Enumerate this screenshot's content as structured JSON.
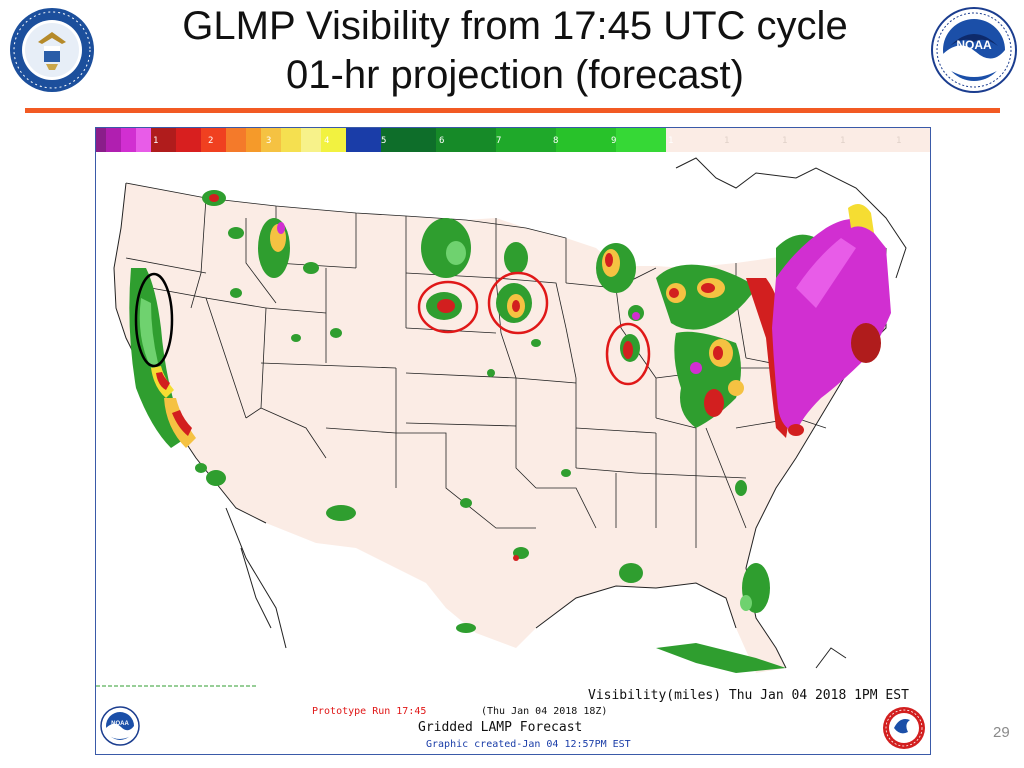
{
  "slide": {
    "title_line1": "GLMP Visibility from 17:45 UTC cycle",
    "title_line2": "01-hr projection (forecast)",
    "page_number": "29"
  },
  "map": {
    "color_scale_labels": [
      "1",
      "2",
      "3",
      "4",
      "5",
      "6",
      "7",
      "8",
      "9",
      "1",
      "1",
      "1",
      "1",
      "1"
    ],
    "caption_main": "Visibility(miles) Thu Jan 04 2018  1PM EST",
    "prototype_run": "Prototype Run 17:45",
    "valid_time": "(Thu Jan 04 2018 18Z)",
    "product_name": "Gridded LAMP Forecast",
    "created": "Graphic created-Jan 04 12:57PM EST"
  },
  "colors": {
    "accent_rule": "#f25a23",
    "land": "#fbece5",
    "fog_magenta": "#d41ad4",
    "low_vis_red": "#d21f1f",
    "moderate_yellow": "#f5dd32",
    "good_green": "#2f9e2f",
    "highlight_circle_red": "#e01818",
    "highlight_circle_black": "#000000"
  },
  "icons": [
    "commerce-seal-icon",
    "noaa-logo-icon",
    "noaa-small-logo-icon",
    "nws-logo-icon"
  ]
}
